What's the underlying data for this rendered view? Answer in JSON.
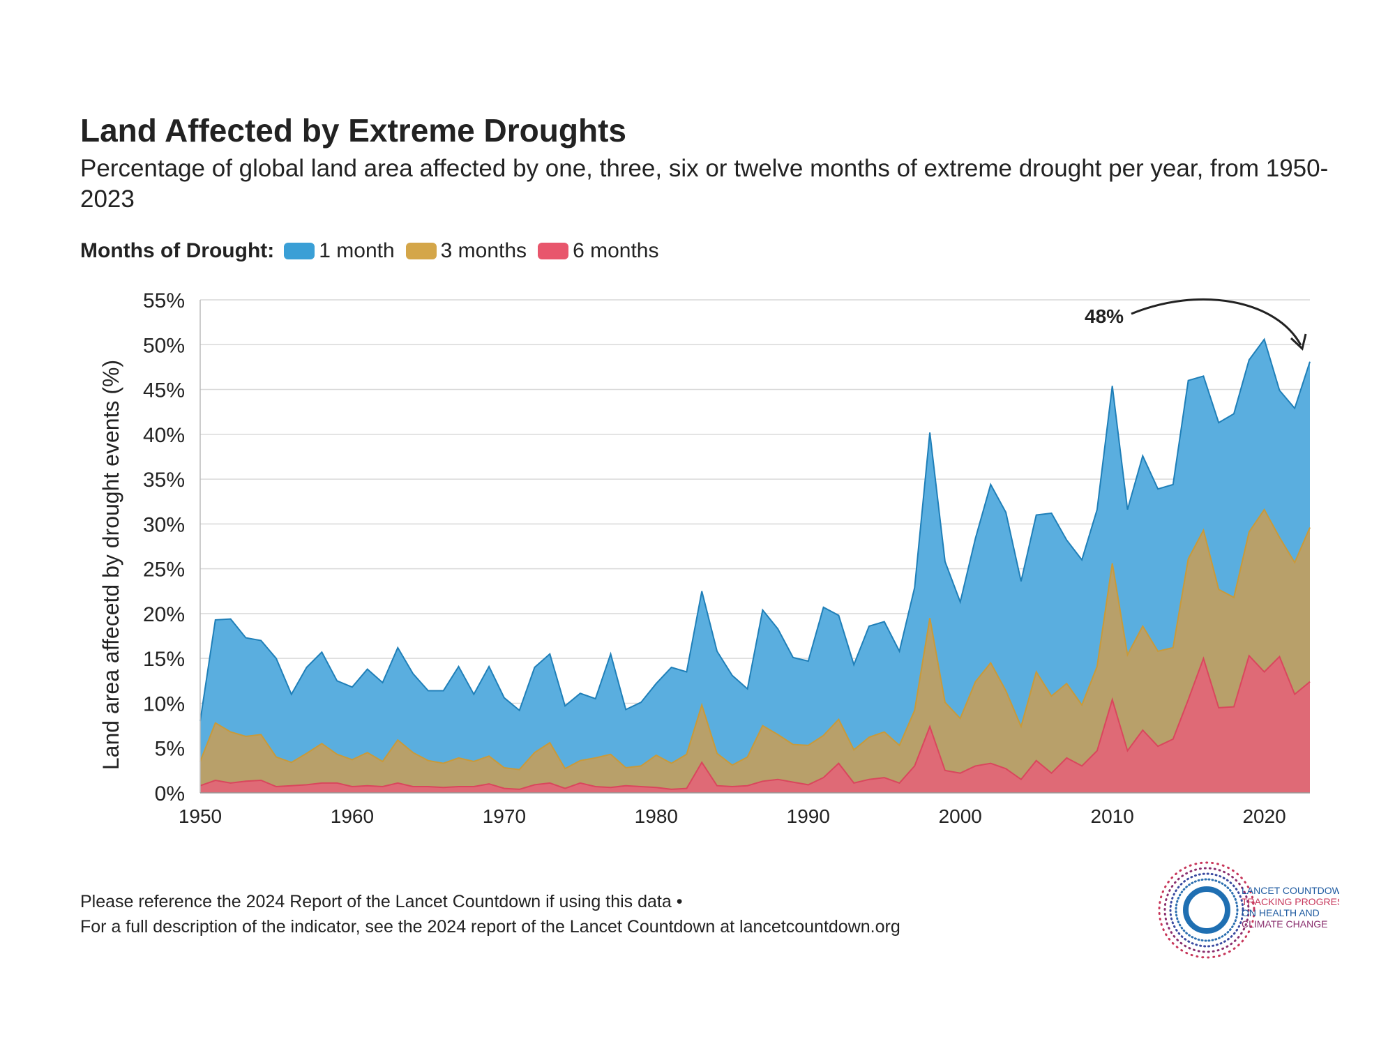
{
  "title": "Land Affected by Extreme Droughts",
  "subtitle": "Percentage of global land area affected by one, three, six or twelve months of extreme drought per year, from 1950-2023",
  "legend": {
    "heading": "Months of Drought:",
    "items": [
      {
        "label": "1 month",
        "color": "#3a9fd6"
      },
      {
        "label": "3 months",
        "color": "#d4a649"
      },
      {
        "label": "6 months",
        "color": "#e8566c"
      }
    ]
  },
  "annotation": {
    "text": "48%"
  },
  "footer": {
    "line1": "Please reference the 2024 Report of the Lancet Countdown if using this data •",
    "line2": "For a full description of the indicator, see the 2024 report of the Lancet Countdown at lancetcountdown.org"
  },
  "logo": {
    "line1": "LANCET COUNTDOWN:",
    "line2": "TRACKING PROGRESS",
    "line3": "ON HEALTH AND",
    "line4": "CLIMATE CHANGE"
  },
  "chart_data": {
    "type": "area",
    "title": "Land Affected by Extreme Droughts",
    "xlabel": "",
    "ylabel": "Land area affecetd by drought events (%)",
    "xlim": [
      1950,
      2023
    ],
    "ylim": [
      0,
      55
    ],
    "x_ticks": [
      1950,
      1960,
      1970,
      1980,
      1990,
      2000,
      2010,
      2020
    ],
    "y_ticks": [
      0,
      5,
      10,
      15,
      20,
      25,
      30,
      35,
      40,
      45,
      50,
      55
    ],
    "y_tick_labels": [
      "0%",
      "5%",
      "10%",
      "15%",
      "20%",
      "25%",
      "30%",
      "35%",
      "40%",
      "45%",
      "50%",
      "55%"
    ],
    "x": [
      1950,
      1951,
      1952,
      1953,
      1954,
      1955,
      1956,
      1957,
      1958,
      1959,
      1960,
      1961,
      1962,
      1963,
      1964,
      1965,
      1966,
      1967,
      1968,
      1969,
      1970,
      1971,
      1972,
      1973,
      1974,
      1975,
      1976,
      1977,
      1978,
      1979,
      1980,
      1981,
      1982,
      1983,
      1984,
      1985,
      1986,
      1987,
      1988,
      1989,
      1990,
      1991,
      1992,
      1993,
      1994,
      1995,
      1996,
      1997,
      1998,
      1999,
      2000,
      2001,
      2002,
      2003,
      2004,
      2005,
      2006,
      2007,
      2008,
      2009,
      2010,
      2011,
      2012,
      2013,
      2014,
      2015,
      2016,
      2017,
      2018,
      2019,
      2020,
      2021,
      2022,
      2023
    ],
    "series": [
      {
        "name": "1 month",
        "color": "#3a9fd6",
        "values": [
          8,
          19.3,
          19.4,
          17.3,
          17,
          15,
          11,
          14,
          15.7,
          12.5,
          11.8,
          13.8,
          12.3,
          16.2,
          13.3,
          11.4,
          11.4,
          14.1,
          11,
          14.1,
          10.6,
          9.2,
          14,
          15.5,
          9.7,
          11.1,
          10.5,
          15.5,
          9.3,
          10.1,
          12.2,
          14,
          13.5,
          22.5,
          15.8,
          13.1,
          11.6,
          20.4,
          18.3,
          15.1,
          14.7,
          20.7,
          19.8,
          14.3,
          18.6,
          19.1,
          15.8,
          22.9,
          40.2,
          25.8,
          21.3,
          28.4,
          34.4,
          31.3,
          23.6,
          31,
          31.2,
          28.2,
          26,
          31.6,
          45.4,
          31.6,
          37.6,
          33.9,
          34.4,
          46,
          46.5,
          41.3,
          42.3,
          48.3,
          50.6,
          44.9,
          42.9,
          48.1
        ]
      },
      {
        "name": "3 months",
        "color": "#d4a649",
        "values": [
          3.5,
          7.8,
          6.8,
          6.3,
          6.5,
          4,
          3.4,
          4.4,
          5.5,
          4.3,
          3.7,
          4.5,
          3.5,
          5.9,
          4.5,
          3.6,
          3.3,
          3.9,
          3.5,
          4.1,
          2.8,
          2.6,
          4.5,
          5.6,
          2.7,
          3.6,
          3.9,
          4.3,
          2.8,
          3,
          4.2,
          3.3,
          4.3,
          9.8,
          4.4,
          3.1,
          4,
          7.5,
          6.5,
          5.4,
          5.3,
          6.4,
          8.2,
          4.8,
          6.2,
          6.8,
          5.3,
          9.2,
          19.5,
          10.1,
          8.3,
          12.4,
          14.5,
          11.4,
          7.4,
          13.5,
          10.8,
          12.2,
          9.8,
          14.1,
          25.6,
          15.4,
          18.6,
          15.8,
          16.2,
          26.1,
          29.3,
          22.7,
          21.8,
          29.1,
          31.6,
          28.5,
          25.7,
          29.6
        ]
      },
      {
        "name": "6 months",
        "color": "#e8566c",
        "values": [
          0.8,
          1.4,
          1.1,
          1.3,
          1.4,
          0.7,
          0.8,
          0.9,
          1.1,
          1.1,
          0.7,
          0.8,
          0.7,
          1.1,
          0.7,
          0.7,
          0.6,
          0.7,
          0.7,
          1,
          0.5,
          0.4,
          0.9,
          1.1,
          0.5,
          1.1,
          0.7,
          0.6,
          0.8,
          0.7,
          0.6,
          0.4,
          0.5,
          3.4,
          0.8,
          0.7,
          0.8,
          1.3,
          1.5,
          1.2,
          0.9,
          1.7,
          3.3,
          1.1,
          1.5,
          1.7,
          1.1,
          3,
          7.4,
          2.5,
          2.2,
          3,
          3.3,
          2.7,
          1.5,
          3.6,
          2.2,
          3.9,
          3,
          4.7,
          10.4,
          4.7,
          7,
          5.2,
          6,
          10.4,
          15,
          9.5,
          9.6,
          15.3,
          13.5,
          15.2,
          11,
          12.4
        ]
      }
    ],
    "annotation": {
      "text": "48%",
      "points_to": {
        "x": 2023,
        "y": 48
      }
    }
  }
}
